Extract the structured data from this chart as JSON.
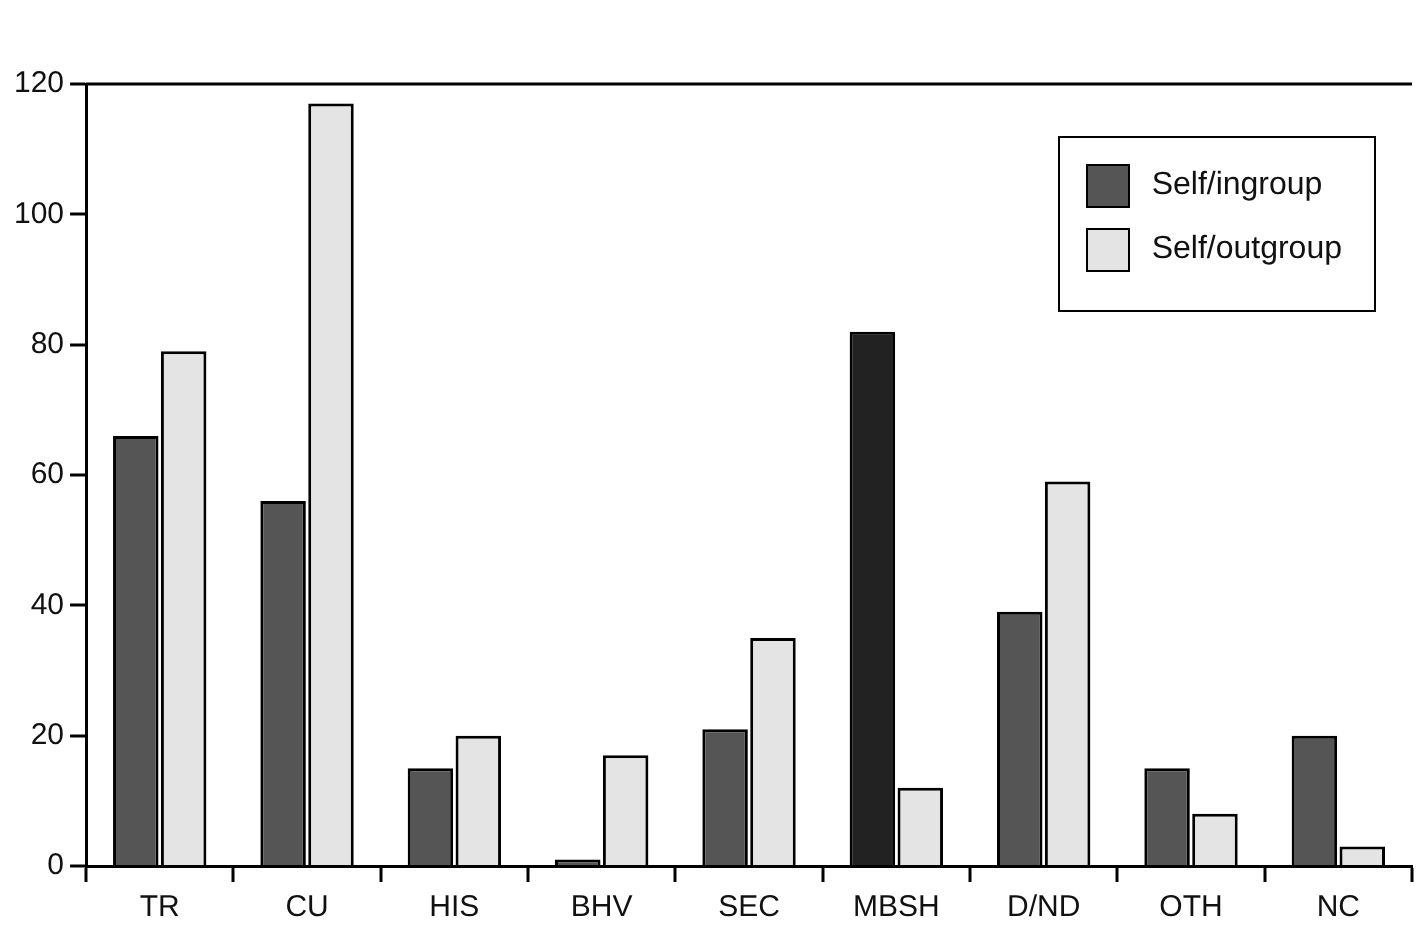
{
  "chart_data": {
    "type": "bar",
    "categories": [
      "TR",
      "CU",
      "HIS",
      "BHV",
      "SEC",
      "MBSH",
      "D/ND",
      "OTH",
      "NC"
    ],
    "series": [
      {
        "name": "Self/ingroup",
        "color": "#555555",
        "colors": [
          "#555555",
          "#555555",
          "#555555",
          "#555555",
          "#555555",
          "#222222",
          "#555555",
          "#555555",
          "#555555"
        ],
        "values": [
          66,
          56,
          15,
          1,
          21,
          82,
          39,
          15,
          20
        ]
      },
      {
        "name": "Self/outgroup",
        "color": "#e4e4e4",
        "values": [
          79,
          117,
          20,
          17,
          35,
          12,
          59,
          8,
          3
        ]
      }
    ],
    "ylim": [
      0,
      120
    ],
    "yticks": [
      0,
      20,
      40,
      60,
      80,
      100,
      120
    ],
    "grid": false,
    "legend": "top right"
  }
}
